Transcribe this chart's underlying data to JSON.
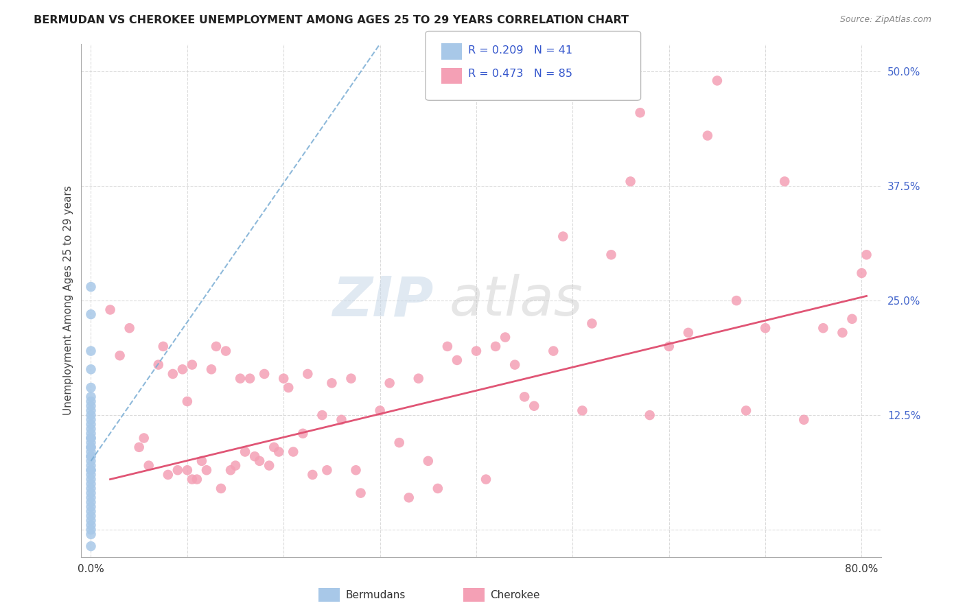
{
  "title": "BERMUDAN VS CHEROKEE UNEMPLOYMENT AMONG AGES 25 TO 29 YEARS CORRELATION CHART",
  "source": "Source: ZipAtlas.com",
  "ylabel": "Unemployment Among Ages 25 to 29 years",
  "xlim": [
    -0.01,
    0.82
  ],
  "ylim": [
    -0.03,
    0.53
  ],
  "xticks": [
    0.0,
    0.1,
    0.2,
    0.3,
    0.4,
    0.5,
    0.6,
    0.7,
    0.8
  ],
  "xticklabels": [
    "0.0%",
    "",
    "",
    "",
    "",
    "",
    "",
    "",
    "80.0%"
  ],
  "yticks": [
    0.0,
    0.125,
    0.25,
    0.375,
    0.5
  ],
  "yticklabels": [
    "",
    "12.5%",
    "25.0%",
    "37.5%",
    "50.0%"
  ],
  "blue_color": "#a8c8e8",
  "pink_color": "#f4a0b5",
  "blue_line_color": "#7aadd4",
  "pink_line_color": "#e05575",
  "legend_text_color": "#3355cc",
  "watermark_zip": "ZIP",
  "watermark_atlas": "atlas",
  "background_color": "#ffffff",
  "grid_color": "#cccccc",
  "bermuda_x": [
    0.0,
    0.0,
    0.0,
    0.0,
    0.0,
    0.0,
    0.0,
    0.0,
    0.0,
    0.0,
    0.0,
    0.0,
    0.0,
    0.0,
    0.0,
    0.0,
    0.0,
    0.0,
    0.0,
    0.0,
    0.0,
    0.0,
    0.0,
    0.0,
    0.0,
    0.0,
    0.0,
    0.0,
    0.0,
    0.0,
    0.0,
    0.0,
    0.0,
    0.0,
    0.0,
    0.0,
    0.0,
    0.0,
    0.0,
    0.0,
    0.0
  ],
  "bermuda_y": [
    0.265,
    0.235,
    0.195,
    0.175,
    0.155,
    0.145,
    0.14,
    0.135,
    0.13,
    0.125,
    0.12,
    0.115,
    0.11,
    0.105,
    0.1,
    0.1,
    0.095,
    0.09,
    0.09,
    0.085,
    0.08,
    0.08,
    0.075,
    0.07,
    0.065,
    0.065,
    0.06,
    0.055,
    0.05,
    0.045,
    0.04,
    0.035,
    0.03,
    0.025,
    0.02,
    0.015,
    0.01,
    0.005,
    0.0,
    -0.005,
    -0.018
  ],
  "cherokee_x": [
    0.02,
    0.03,
    0.04,
    0.05,
    0.055,
    0.06,
    0.07,
    0.075,
    0.08,
    0.085,
    0.09,
    0.095,
    0.1,
    0.1,
    0.105,
    0.105,
    0.11,
    0.115,
    0.12,
    0.125,
    0.13,
    0.135,
    0.14,
    0.145,
    0.15,
    0.155,
    0.16,
    0.165,
    0.17,
    0.175,
    0.18,
    0.185,
    0.19,
    0.195,
    0.2,
    0.205,
    0.21,
    0.22,
    0.225,
    0.23,
    0.24,
    0.245,
    0.25,
    0.26,
    0.27,
    0.275,
    0.28,
    0.3,
    0.31,
    0.32,
    0.33,
    0.34,
    0.35,
    0.36,
    0.37,
    0.38,
    0.4,
    0.41,
    0.42,
    0.43,
    0.44,
    0.45,
    0.46,
    0.48,
    0.49,
    0.51,
    0.52,
    0.54,
    0.56,
    0.57,
    0.58,
    0.6,
    0.62,
    0.64,
    0.65,
    0.67,
    0.68,
    0.7,
    0.72,
    0.74,
    0.76,
    0.78,
    0.79,
    0.8,
    0.805
  ],
  "cherokee_y": [
    0.24,
    0.19,
    0.22,
    0.09,
    0.1,
    0.07,
    0.18,
    0.2,
    0.06,
    0.17,
    0.065,
    0.175,
    0.14,
    0.065,
    0.055,
    0.18,
    0.055,
    0.075,
    0.065,
    0.175,
    0.2,
    0.045,
    0.195,
    0.065,
    0.07,
    0.165,
    0.085,
    0.165,
    0.08,
    0.075,
    0.17,
    0.07,
    0.09,
    0.085,
    0.165,
    0.155,
    0.085,
    0.105,
    0.17,
    0.06,
    0.125,
    0.065,
    0.16,
    0.12,
    0.165,
    0.065,
    0.04,
    0.13,
    0.16,
    0.095,
    0.035,
    0.165,
    0.075,
    0.045,
    0.2,
    0.185,
    0.195,
    0.055,
    0.2,
    0.21,
    0.18,
    0.145,
    0.135,
    0.195,
    0.32,
    0.13,
    0.225,
    0.3,
    0.38,
    0.455,
    0.125,
    0.2,
    0.215,
    0.43,
    0.49,
    0.25,
    0.13,
    0.22,
    0.38,
    0.12,
    0.22,
    0.215,
    0.23,
    0.28,
    0.3
  ],
  "blue_trendline_x": [
    0.0,
    0.3
  ],
  "blue_trendline_y": [
    0.075,
    0.53
  ],
  "pink_trendline_x": [
    0.02,
    0.805
  ],
  "pink_trendline_y": [
    0.055,
    0.255
  ]
}
